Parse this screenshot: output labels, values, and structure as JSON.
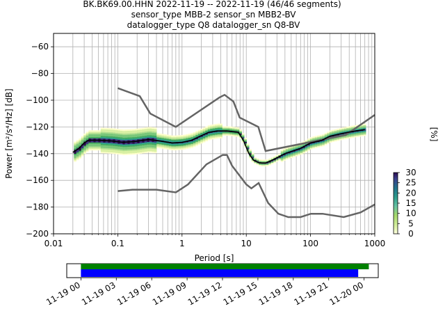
{
  "chart_data": {
    "type": "heatmap",
    "title_lines": [
      "BK.BK69.00.HHN   2022-11-19 -- 2022-11-19  (46/46 segments)",
      "sensor_type MBB-2 sensor_sn MBB2-BV",
      "datalogger_type Q8 datalogger_sn Q8-BV"
    ],
    "xlabel": "Period [s]",
    "ylabel": "Power [m²/s⁴/Hz] [dB]",
    "xscale": "log",
    "xlim": [
      0.01,
      1000
    ],
    "ylim": [
      -200,
      -50
    ],
    "xticks": [
      0.01,
      0.1,
      1,
      10,
      100,
      1000
    ],
    "xtick_labels": [
      "0.01",
      "0.1",
      "1",
      "10",
      "100",
      "1000"
    ],
    "yticks": [
      -200,
      -180,
      -160,
      -140,
      -120,
      -100,
      -80,
      -60
    ],
    "ytick_labels": [
      "−200",
      "−180",
      "−160",
      "−140",
      "−120",
      "−100",
      "−80",
      "−60"
    ],
    "grid": true,
    "noise_model_high": [
      [
        0.1,
        -91
      ],
      [
        0.22,
        -97
      ],
      [
        0.32,
        -110
      ],
      [
        0.8,
        -120
      ],
      [
        3.8,
        -98
      ],
      [
        4.6,
        -96
      ],
      [
        6.3,
        -101
      ],
      [
        7.9,
        -113
      ],
      [
        15.4,
        -120
      ],
      [
        20,
        -138
      ],
      [
        354.8,
        -126
      ],
      [
        1000,
        -111
      ]
    ],
    "noise_model_low": [
      [
        0.1,
        -168
      ],
      [
        0.17,
        -167
      ],
      [
        0.4,
        -167
      ],
      [
        0.8,
        -169
      ],
      [
        1.24,
        -163
      ],
      [
        2.4,
        -148
      ],
      [
        4.3,
        -141
      ],
      [
        5,
        -141
      ],
      [
        6,
        -149
      ],
      [
        10,
        -163
      ],
      [
        12,
        -166
      ],
      [
        15.6,
        -162
      ],
      [
        21.9,
        -177
      ],
      [
        31.6,
        -185
      ],
      [
        45,
        -187.5
      ],
      [
        70,
        -187.5
      ],
      [
        101,
        -185
      ],
      [
        154,
        -185
      ],
      [
        328,
        -187.5
      ],
      [
        600,
        -184
      ],
      [
        1000,
        -178
      ]
    ],
    "mean_curve": [
      [
        0.02,
        -139
      ],
      [
        0.025,
        -136
      ],
      [
        0.03,
        -132
      ],
      [
        0.035,
        -130
      ],
      [
        0.05,
        -130
      ],
      [
        0.08,
        -130.5
      ],
      [
        0.12,
        -131.5
      ],
      [
        0.18,
        -131
      ],
      [
        0.3,
        -129.5
      ],
      [
        0.45,
        -130.5
      ],
      [
        0.7,
        -132
      ],
      [
        1.0,
        -131.5
      ],
      [
        1.4,
        -130
      ],
      [
        1.9,
        -127
      ],
      [
        2.6,
        -124
      ],
      [
        3.5,
        -123
      ],
      [
        5,
        -123
      ],
      [
        7.5,
        -124
      ],
      [
        9,
        -130
      ],
      [
        11,
        -140
      ],
      [
        13,
        -145
      ],
      [
        16,
        -147
      ],
      [
        20,
        -147
      ],
      [
        25,
        -145
      ],
      [
        40,
        -140
      ],
      [
        70,
        -136
      ],
      [
        100,
        -132
      ],
      [
        150,
        -130
      ],
      [
        200,
        -127
      ],
      [
        300,
        -125
      ],
      [
        500,
        -123
      ],
      [
        700,
        -122
      ]
    ],
    "colorbar": {
      "label": "[%]",
      "ticks": [
        0,
        5,
        10,
        15,
        20,
        25,
        30
      ],
      "range": [
        0,
        30
      ]
    },
    "timeline": {
      "tick_labels": [
        "11-19 00",
        "11-19 03",
        "11-19 06",
        "11-19 09",
        "11-19 12",
        "11-19 15",
        "11-19 18",
        "11-19 21",
        "11-20 00"
      ],
      "range_hours": [
        -1.2,
        25.2
      ],
      "green_bar_hours": [
        0,
        24.4
      ],
      "blue_bar_hours": [
        0,
        23.5
      ]
    },
    "colors": {
      "noise_model": "#646464",
      "mean": "#000000",
      "green_bar": "#008000",
      "blue_bar": "#0000ff",
      "grid": "#b0b0b0"
    }
  }
}
